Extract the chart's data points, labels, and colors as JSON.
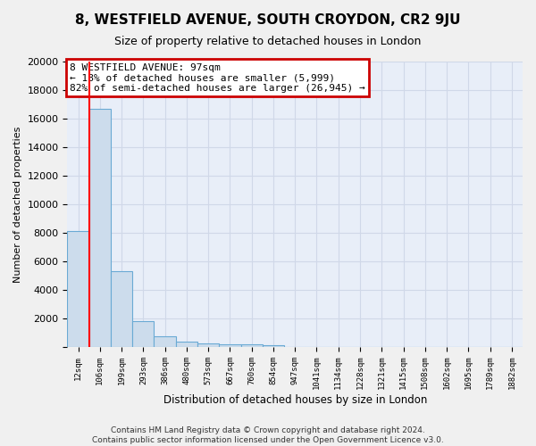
{
  "title": "8, WESTFIELD AVENUE, SOUTH CROYDON, CR2 9JU",
  "subtitle": "Size of property relative to detached houses in London",
  "xlabel": "Distribution of detached houses by size in London",
  "ylabel": "Number of detached properties",
  "bar_color": "#ccdcec",
  "bar_edge_color": "#6aaad4",
  "bg_color": "#e8eef8",
  "grid_color": "#d0d8e8",
  "fig_bg_color": "#f0f0f0",
  "categories": [
    "12sqm",
    "106sqm",
    "199sqm",
    "293sqm",
    "386sqm",
    "480sqm",
    "573sqm",
    "667sqm",
    "760sqm",
    "854sqm",
    "947sqm",
    "1041sqm",
    "1134sqm",
    "1228sqm",
    "1321sqm",
    "1415sqm",
    "1508sqm",
    "1602sqm",
    "1695sqm",
    "1789sqm",
    "1882sqm"
  ],
  "values": [
    8100,
    16700,
    5300,
    1800,
    750,
    350,
    250,
    220,
    200,
    130,
    0,
    0,
    0,
    0,
    0,
    0,
    0,
    0,
    0,
    0,
    0
  ],
  "ylim": [
    0,
    20000
  ],
  "yticks": [
    0,
    2000,
    4000,
    6000,
    8000,
    10000,
    12000,
    14000,
    16000,
    18000,
    20000
  ],
  "annotation_line1": "8 WESTFIELD AVENUE: 97sqm",
  "annotation_line2": "← 18% of detached houses are smaller (5,999)",
  "annotation_line3": "82% of semi-detached houses are larger (26,945) →",
  "annotation_box_color": "#ffffff",
  "annotation_border_color": "#cc0000",
  "footer_line1": "Contains HM Land Registry data © Crown copyright and database right 2024.",
  "footer_line2": "Contains public sector information licensed under the Open Government Licence v3.0."
}
